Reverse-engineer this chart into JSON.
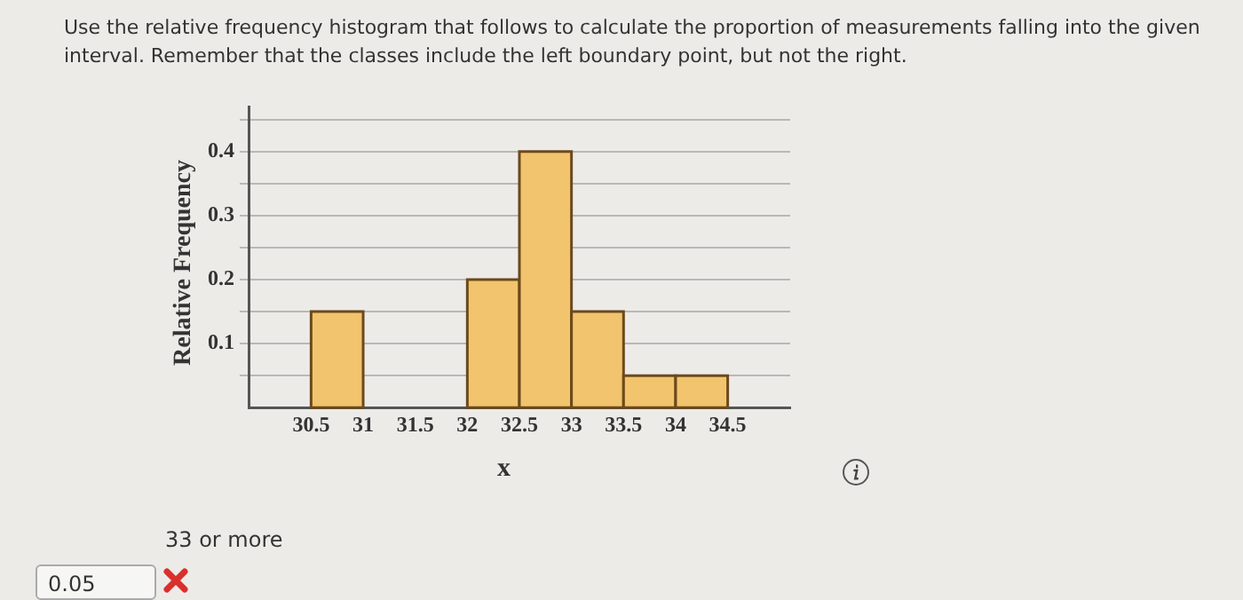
{
  "chart_data": {
    "type": "histogram",
    "title": "Use the relative frequency histogram that follows to calculate the proportion of measurements falling into the given interval. Remember that the classes include the left boundary point, but not the right.",
    "xlabel": "x",
    "ylabel": "Relative Frequency",
    "bins": [
      30.5,
      31,
      31.5,
      32,
      32.5,
      33,
      33.5,
      34,
      34.5
    ],
    "values": [
      0.15,
      0,
      0,
      0.2,
      0.4,
      0.15,
      0.05,
      0.05
    ],
    "color": "#f3c46e",
    "xlim": [
      29.9,
      35.1
    ],
    "xticks": [
      30.5,
      31,
      31.5,
      32,
      32.5,
      33,
      33.5,
      34,
      34.5
    ],
    "ylim": [
      0,
      0.47
    ],
    "yticks": [
      {
        "value": 0.05,
        "label": null
      },
      0.1,
      {
        "value": 0.15,
        "label": null
      },
      0.2,
      {
        "value": 0.25,
        "label": null
      },
      0.3,
      {
        "value": 0.35,
        "label": null
      },
      0.4,
      {
        "value": 0.45,
        "label": null
      }
    ],
    "grid": "y",
    "legend": false,
    "annotations": [
      "33 or more",
      "0.05"
    ]
  }
}
